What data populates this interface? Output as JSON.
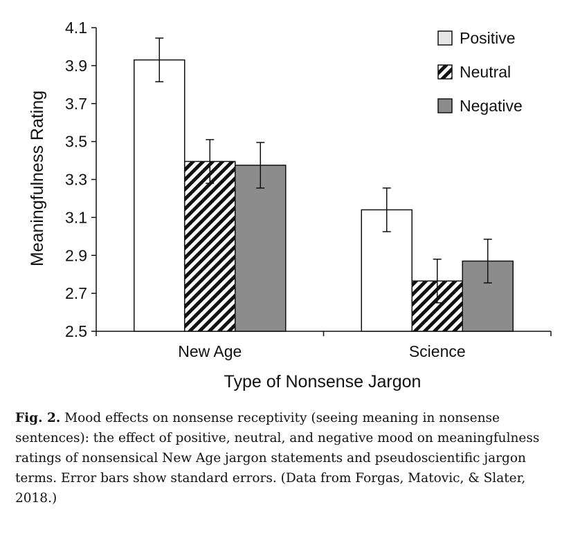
{
  "chart_data": {
    "type": "bar",
    "xlabel": "Type of Nonsense Jargon",
    "ylabel": "Meaningfulness Rating",
    "ylim": [
      2.5,
      4.1
    ],
    "yticks": [
      "2.5",
      "2.7",
      "2.9",
      "3.1",
      "3.3",
      "3.5",
      "3.7",
      "3.9",
      "4.1"
    ],
    "categories": [
      "New Age",
      "Science"
    ],
    "series": [
      {
        "name": "Positive",
        "values": [
          3.93,
          3.14
        ],
        "errors": [
          0.115,
          0.115
        ],
        "pattern": "white"
      },
      {
        "name": "Neutral",
        "values": [
          3.395,
          2.765
        ],
        "errors": [
          0.115,
          0.115
        ],
        "pattern": "hatched"
      },
      {
        "name": "Negative",
        "values": [
          3.375,
          2.87
        ],
        "errors": [
          0.12,
          0.115
        ],
        "pattern": "gray"
      }
    ],
    "legend_position": "top-right",
    "grid": false
  },
  "colors": {
    "positive_fill": "#ffffff",
    "neutral_fill": "hatch",
    "negative_fill": "#8c8c8c",
    "stroke": "#111111"
  },
  "caption": {
    "label": "Fig. 2.",
    "text": "Mood effects on nonsense receptivity (seeing meaning in nonsense sentences): the effect of positive, neutral, and negative mood on meaningfulness ratings of nonsensical New Age jargon statements and pseudoscientific jargon terms. Error bars show standard errors. (Data from Forgas, Matovic, & Slater, 2018.)"
  }
}
